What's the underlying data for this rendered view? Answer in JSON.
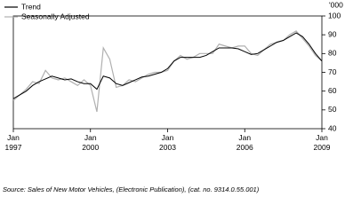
{
  "chart_data": {
    "type": "line",
    "y_unit": "'000",
    "source": "Source: Sales of New Motor Vehicles, (Electronic Publication), (cat. no. 9314.0.55.001)",
    "x": [
      1997,
      1997.25,
      1997.5,
      1997.75,
      1998,
      1998.25,
      1998.5,
      1998.75,
      1999,
      1999.25,
      1999.5,
      1999.75,
      2000,
      2000.25,
      2000.5,
      2000.75,
      2001,
      2001.25,
      2001.5,
      2001.75,
      2002,
      2002.25,
      2002.5,
      2002.75,
      2003,
      2003.25,
      2003.5,
      2003.75,
      2004,
      2004.25,
      2004.5,
      2004.75,
      2005,
      2005.25,
      2005.5,
      2005.75,
      2006,
      2006.25,
      2006.5,
      2006.75,
      2007,
      2007.25,
      2007.5,
      2007.75,
      2008,
      2008.25,
      2008.5,
      2008.75,
      2009
    ],
    "series": [
      {
        "name": "Trend",
        "color": "#000000",
        "values": [
          56,
          58,
          60,
          63,
          65,
          66.5,
          68,
          67,
          66,
          66.5,
          65,
          64,
          64,
          61,
          68,
          67,
          64,
          63,
          64.5,
          66,
          67.5,
          68,
          69,
          70,
          72,
          76,
          78,
          78,
          78,
          78,
          79,
          81,
          83,
          83,
          83,
          82.5,
          81,
          79.5,
          80,
          82,
          84,
          86,
          87,
          89,
          91,
          89,
          85,
          80,
          76
        ]
      },
      {
        "name": "Seasonally Adjusted",
        "color": "#b0b0b0",
        "values": [
          55,
          58,
          61,
          65,
          64,
          71,
          67,
          66,
          67,
          65,
          63,
          66,
          63,
          49,
          83,
          77,
          62,
          63,
          66,
          65,
          67,
          69,
          70,
          70,
          71,
          76,
          79,
          77,
          78,
          80,
          80,
          80,
          85,
          84,
          83,
          84,
          84,
          80,
          79,
          82,
          85,
          86,
          87,
          90,
          92,
          88,
          84,
          79,
          76
        ]
      }
    ],
    "xlim": [
      1997,
      2009
    ],
    "xticks": [
      {
        "value": 1997,
        "label": "Jan 1997"
      },
      {
        "value": 2000,
        "label": "Jan 2000"
      },
      {
        "value": 2003,
        "label": "Jan 2003"
      },
      {
        "value": 2006,
        "label": "Jan 2006"
      },
      {
        "value": 2009,
        "label": "Jan 2009"
      }
    ],
    "ylim": [
      40,
      100
    ],
    "yticks": [
      40,
      50,
      60,
      70,
      80,
      90,
      100
    ],
    "legend": "top-left"
  }
}
